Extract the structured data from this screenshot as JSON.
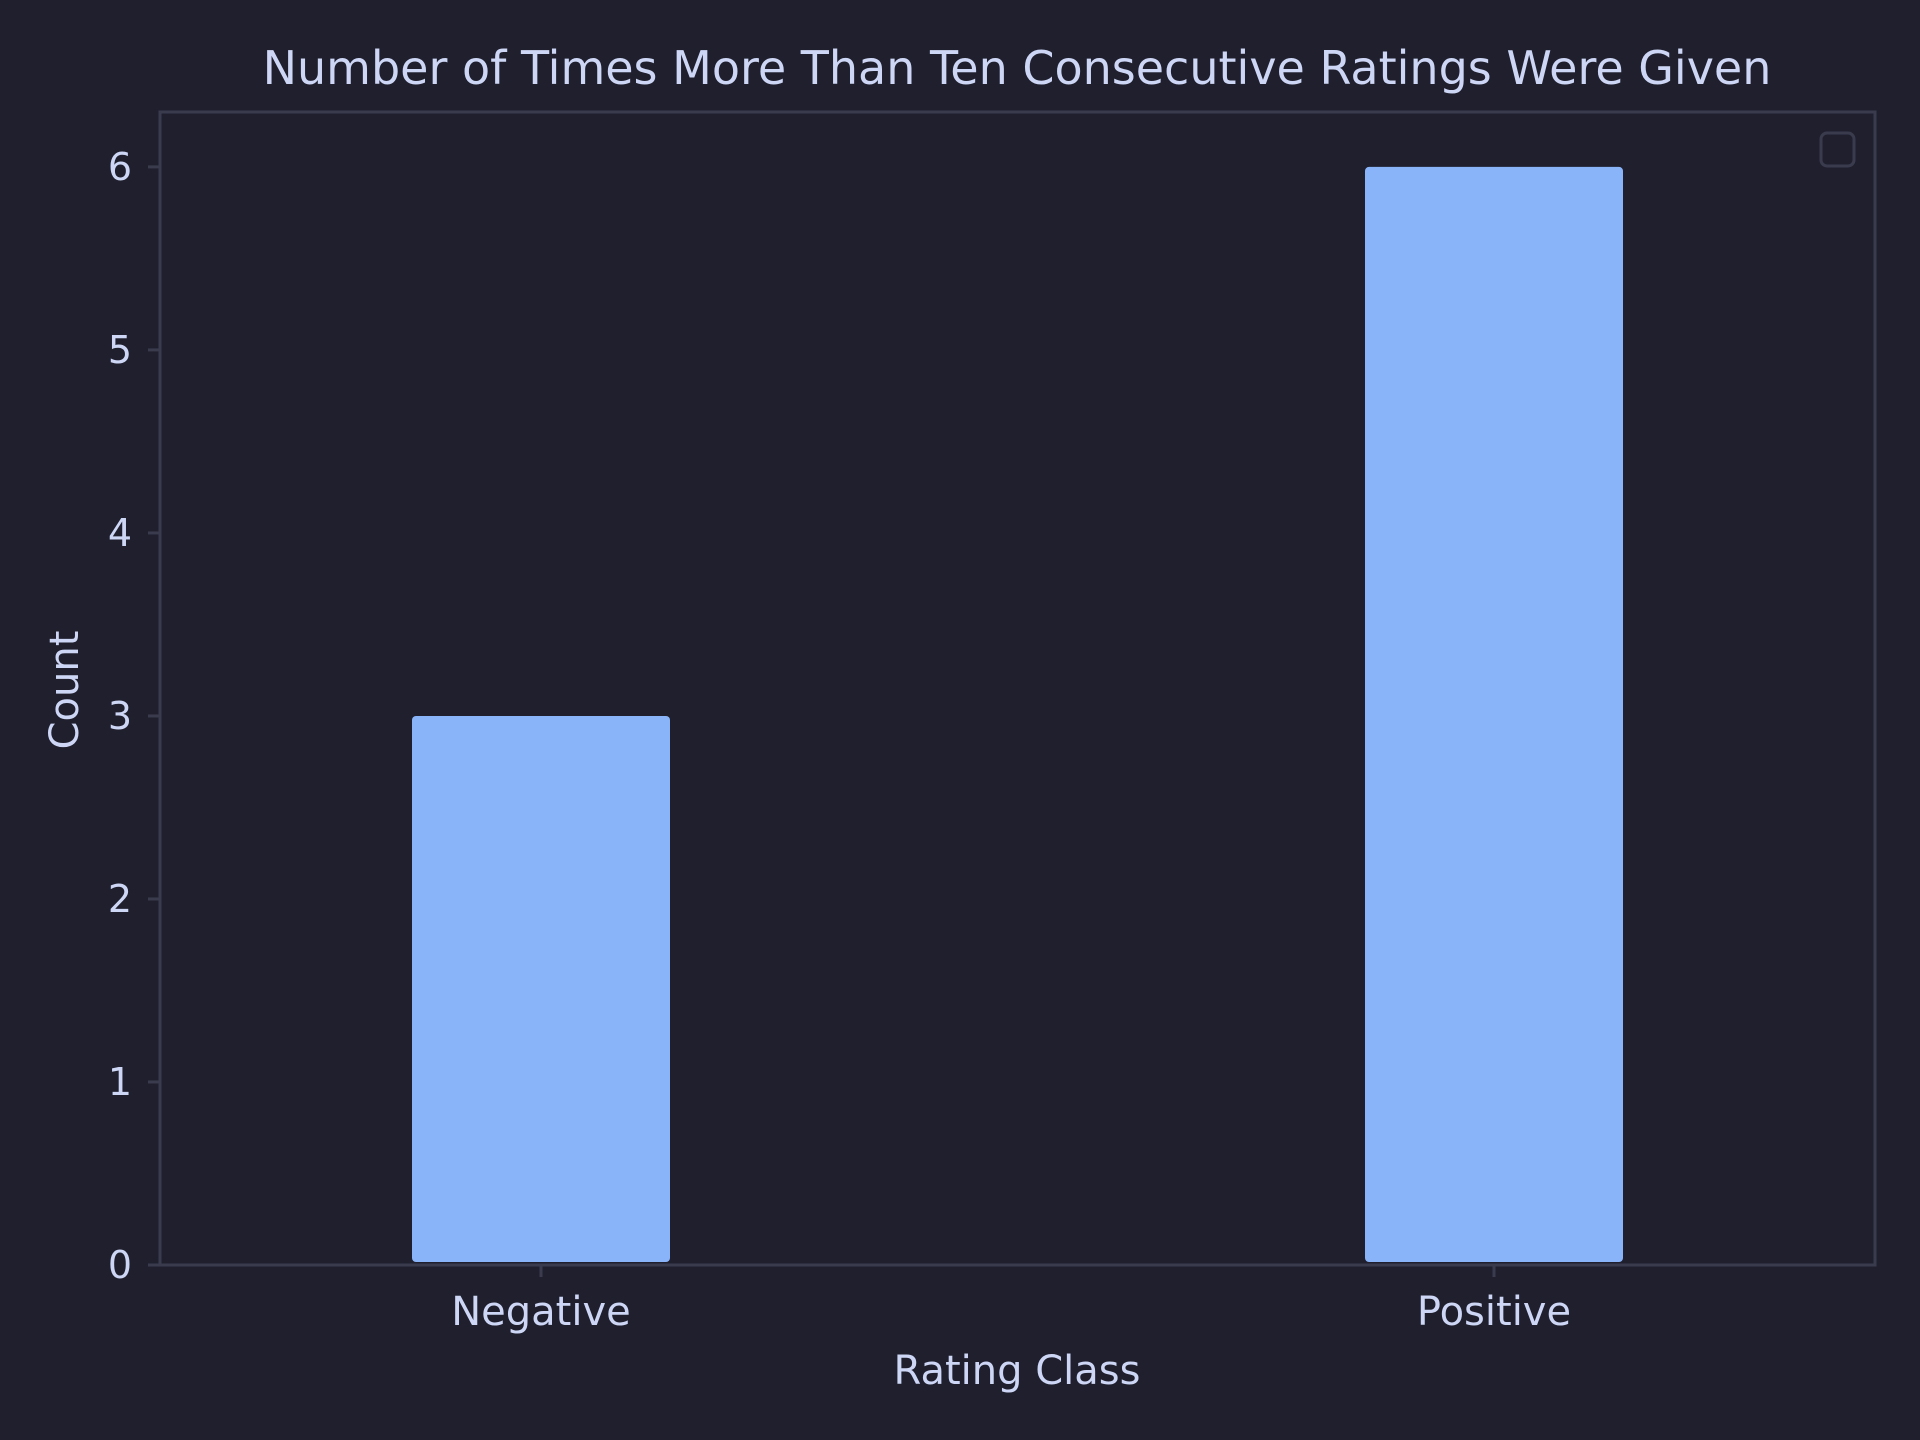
{
  "chart_data": {
    "type": "bar",
    "title": "Number of Times More Than Ten Consecutive Ratings Were Given",
    "xlabel": "Rating Class",
    "ylabel": "Count",
    "categories": [
      "Negative",
      "Positive"
    ],
    "values": [
      3,
      6
    ],
    "ylim": [
      0,
      6.3
    ],
    "yticks": [
      "0",
      "1",
      "2",
      "3",
      "4",
      "5",
      "6"
    ],
    "grid": false,
    "legend": "top-right",
    "colors": {
      "background": "#1f1f2e",
      "bar": "#89b4fa",
      "text": "#cdd6f4",
      "frame": "#3a3b4d"
    }
  }
}
